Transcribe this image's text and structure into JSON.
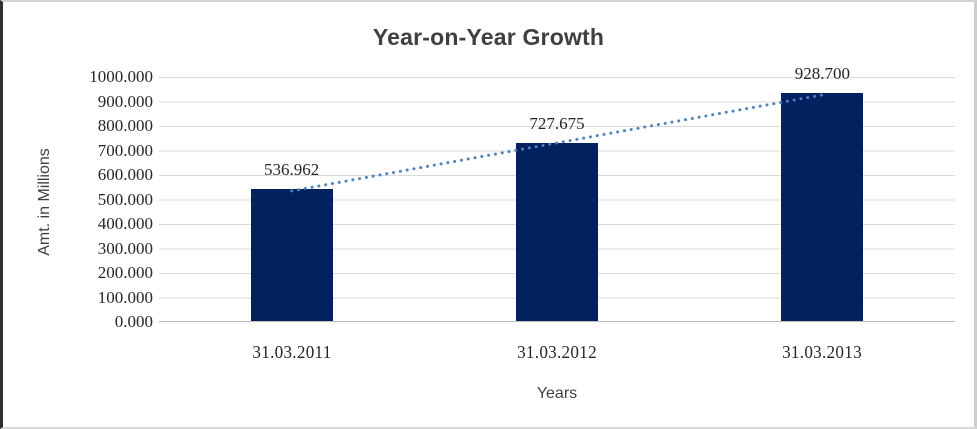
{
  "title": "Year-on-Year Growth",
  "chart_data": {
    "type": "bar",
    "title": "Year-on-Year Growth",
    "categories": [
      "31.03.2011",
      "31.03.2012",
      "31.03.2013"
    ],
    "values": [
      536.962,
      727.675,
      928.7
    ],
    "data_labels": [
      "536.962",
      "727.675",
      "928.700"
    ],
    "xlabel": "Years",
    "ylabel": "Amt. in Millions",
    "ylim": [
      0,
      1000
    ],
    "ytick_step": 100,
    "ytick_labels": [
      "1000.000",
      "900.000",
      "800.000",
      "700.000",
      "600.000",
      "500.000",
      "400.000",
      "300.000",
      "200.000",
      "100.000",
      "0.000"
    ],
    "grid": true,
    "legend": "none",
    "bar_color": "#03215f",
    "trendline": {
      "type": "linear",
      "style": "dotted",
      "color": "#4f81bd"
    },
    "gridline_color": "#d9d9d9",
    "axis_line_color": "#bdbdbd",
    "label_color": "#262626",
    "title_color": "#3f3f3f"
  }
}
